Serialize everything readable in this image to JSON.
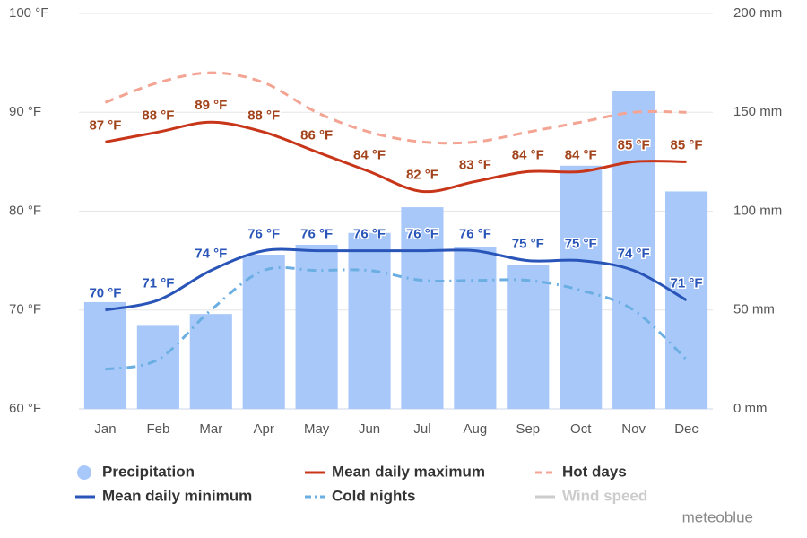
{
  "chart_data": {
    "type": "combo",
    "categories": [
      "Jan",
      "Feb",
      "Mar",
      "Apr",
      "May",
      "Jun",
      "Jul",
      "Aug",
      "Sep",
      "Oct",
      "Nov",
      "Dec"
    ],
    "ylim": [
      60,
      100
    ],
    "yticks": [
      {
        "value": 60,
        "label": "60 °F"
      },
      {
        "value": 70,
        "label": "70 °F"
      },
      {
        "value": 80,
        "label": "80 °F"
      },
      {
        "value": 90,
        "label": "90 °F"
      },
      {
        "value": 100,
        "label": "100 °F"
      }
    ],
    "y2lim": [
      0,
      200
    ],
    "y2ticks": [
      {
        "value": 0,
        "label": "0 mm"
      },
      {
        "value": 50,
        "label": "50 mm"
      },
      {
        "value": 100,
        "label": "100 mm"
      },
      {
        "value": 150,
        "label": "150 mm"
      },
      {
        "value": 200,
        "label": "200 mm"
      }
    ],
    "grid": true,
    "series": [
      {
        "name": "Precipitation",
        "type": "bar",
        "axis": "y2",
        "color": "#a9c8fa",
        "values": [
          54,
          42,
          48,
          78,
          83,
          89,
          102,
          82,
          73,
          123,
          161,
          110
        ]
      },
      {
        "name": "Mean daily maximum",
        "type": "line",
        "color": "#c8361a",
        "label_color": "#a2431b",
        "values": [
          87,
          88,
          89,
          88,
          86,
          84,
          82,
          83,
          84,
          84,
          85,
          85
        ],
        "value_labels": [
          "87 °F",
          "88 °F",
          "89 °F",
          "88 °F",
          "86 °F",
          "84 °F",
          "82 °F",
          "83 °F",
          "84 °F",
          "84 °F",
          "85 °F",
          "85 °F"
        ]
      },
      {
        "name": "Hot days",
        "type": "line",
        "dash": "dashed",
        "color": "#f4a493",
        "values": [
          91,
          93,
          94,
          93,
          90,
          88,
          87,
          87,
          88,
          89,
          90,
          90
        ]
      },
      {
        "name": "Mean daily minimum",
        "type": "line",
        "color": "#2a55b8",
        "label_color": "#2a55b8",
        "values": [
          70,
          71,
          74,
          76,
          76,
          76,
          76,
          76,
          75,
          75,
          74,
          71
        ],
        "value_labels": [
          "70 °F",
          "71 °F",
          "74 °F",
          "76 °F",
          "76 °F",
          "76 °F",
          "76 °F",
          "76 °F",
          "75 °F",
          "75 °F",
          "74 °F",
          "71 °F"
        ]
      },
      {
        "name": "Cold nights",
        "type": "line",
        "dash": "dashdot",
        "color": "#6aaee2",
        "values": [
          64,
          65,
          70,
          74,
          74,
          74,
          73,
          73,
          73,
          72,
          70,
          65
        ]
      },
      {
        "name": "Wind speed",
        "type": "line",
        "hidden": true,
        "color": "#cccccc"
      }
    ],
    "credit": "meteoblue"
  }
}
